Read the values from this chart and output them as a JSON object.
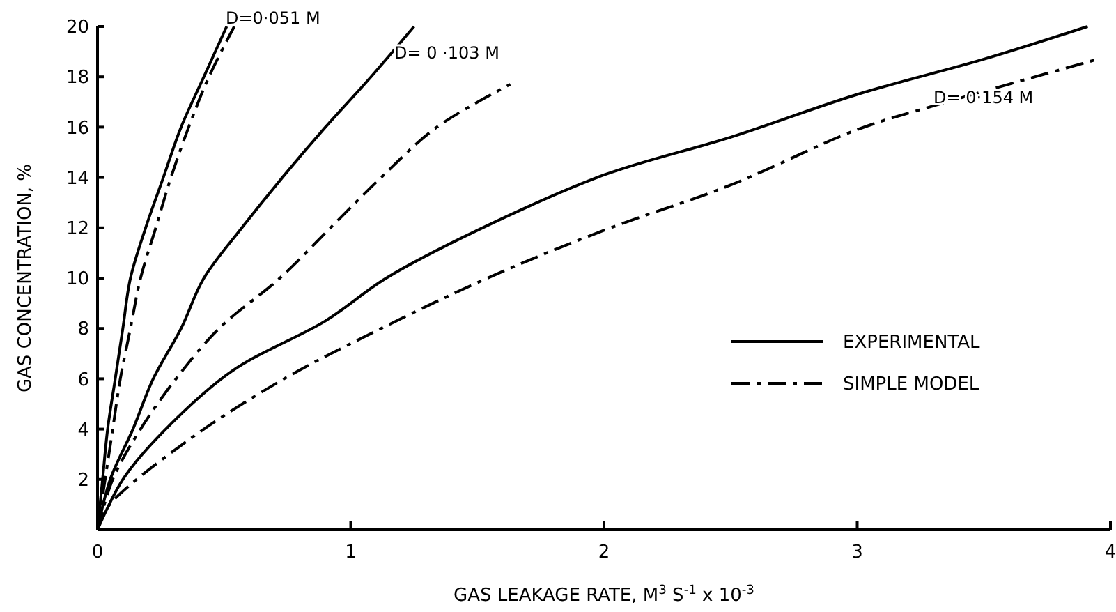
{
  "chart_data": {
    "type": "line",
    "xlabel": "GAS LEAKAGE RATE, M$^{3}$ S$^{-1}$ x 10$^{-3}$",
    "ylabel": "GAS CONCENTRATION, %",
    "xlim": [
      0,
      4
    ],
    "ylim": [
      0,
      20
    ],
    "xticks": [
      0,
      1,
      2,
      3,
      4
    ],
    "yticks": [
      2,
      4,
      6,
      8,
      10,
      12,
      14,
      16,
      18,
      20
    ],
    "grid": false,
    "legend": "right",
    "marker": "none",
    "series": [
      {
        "name": "EXPERIMENTAL",
        "color": "#000000",
        "line_style": "solid",
        "x": [
          0,
          0.02,
          0.04,
          0.07,
          0.1,
          0.13,
          0.19,
          0.26,
          0.33,
          0.42,
          0.51
        ],
        "values": [
          0,
          2,
          4,
          6,
          8,
          10,
          12,
          14,
          16,
          18,
          20
        ]
      },
      {
        "name": "SIMPLE MODEL",
        "color": "#000000",
        "line_style": "dashdot",
        "x": [
          0,
          0.03,
          0.06,
          0.09,
          0.13,
          0.17,
          0.23,
          0.29,
          0.36,
          0.44,
          0.54
        ],
        "values": [
          0,
          2,
          4,
          6,
          8,
          10,
          12,
          14,
          16,
          18,
          20
        ]
      },
      {
        "color": "#000000",
        "line_style": "solid",
        "x": [
          0,
          0.05,
          0.14,
          0.22,
          0.33,
          0.42,
          0.57,
          0.73,
          0.9,
          1.08,
          1.25
        ],
        "values": [
          0,
          2,
          4,
          6,
          8,
          10,
          12,
          14,
          16,
          18,
          20
        ]
      },
      {
        "color": "#000000",
        "line_style": "dashdot",
        "x": [
          0,
          0.06,
          0.17,
          0.31,
          0.48,
          0.72,
          0.92,
          1.12,
          1.34,
          1.63
        ],
        "values": [
          0,
          2,
          4,
          6,
          8,
          10,
          12,
          14,
          16,
          17.7
        ]
      },
      {
        "color": "#000000",
        "line_style": "solid",
        "x": [
          0,
          0.1,
          0.26,
          0.53,
          0.9,
          1.14,
          1.5,
          2,
          2.5,
          3,
          3.5,
          3.91
        ],
        "values": [
          0,
          2,
          3.9,
          6.3,
          8.3,
          10,
          11.9,
          14.1,
          15.6,
          17.3,
          18.7,
          20
        ]
      },
      {
        "color": "#000000",
        "line_style": "dashdot",
        "x": [
          0,
          0.04,
          0.35,
          0.72,
          1.08,
          1.54,
          2,
          2.5,
          3,
          3.32,
          3.95
        ],
        "values": [
          0,
          0.9,
          3.5,
          5.9,
          7.8,
          10,
          11.9,
          13.7,
          15.9,
          16.9,
          18.7
        ]
      }
    ],
    "annotations": [
      "D=0·051 M",
      "D= 0 ·103 M",
      "D= 0·154 M"
    ]
  }
}
